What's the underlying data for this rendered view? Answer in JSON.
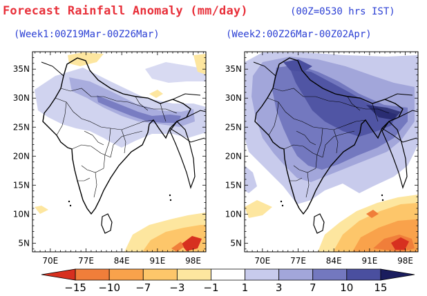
{
  "title": "Forecast Rainfall Anomaly (mm/day)",
  "time_note": "(00Z=0530 hrs IST)",
  "panels": [
    {
      "title": "(Week1:00Z19Mar-00Z26Mar)"
    },
    {
      "title": "(Week2:00Z26Mar-00Z02Apr)"
    }
  ],
  "axes": {
    "lon_labels": [
      "70E",
      "77E",
      "84E",
      "91E",
      "98E"
    ],
    "lat_labels": [
      "35N",
      "30N",
      "25N",
      "20N",
      "15N",
      "10N",
      "5N"
    ]
  },
  "colorbar": {
    "labels": [
      "−15",
      "−10",
      "−7",
      "−3",
      "−1",
      "1",
      "3",
      "7",
      "10",
      "15"
    ],
    "colors": [
      "#d7301f",
      "#f07e3a",
      "#f9a24b",
      "#fdc66a",
      "#fde69f",
      "#ffffff",
      "#c8cbec",
      "#a2a6da",
      "#7378bf",
      "#4a4f9f",
      "#1a1d5e"
    ]
  }
}
